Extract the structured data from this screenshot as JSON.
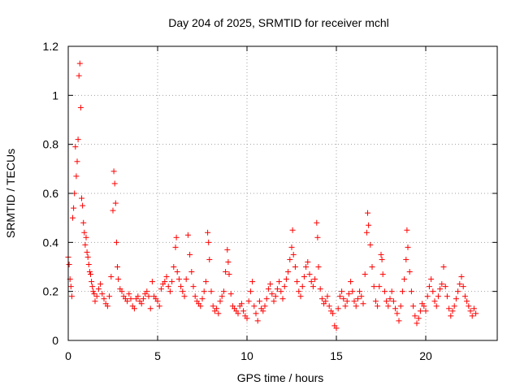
{
  "chart_data": {
    "type": "scatter",
    "title": "Day 204 of 2025, SRMTID for receiver mchl",
    "xlabel": "GPS time / hours",
    "ylabel": "SRMTID / TECUs",
    "xlim": [
      0,
      24
    ],
    "ylim": [
      0,
      1.2
    ],
    "xticks": [
      0,
      5,
      10,
      15,
      20
    ],
    "yticks": [
      0,
      0.2,
      0.4,
      0.6,
      0.8,
      1,
      1.2
    ],
    "xtick_labels": [
      "0",
      "5",
      "10",
      "15",
      "20"
    ],
    "ytick_labels": [
      "0",
      "0.2",
      "0.4",
      "0.6",
      "0.8",
      "1",
      "1.2"
    ],
    "grid": true,
    "marker": "+",
    "marker_color": "#ff0000",
    "grid_color": "#a0a0a0",
    "series": [
      {
        "name": "SRMTID",
        "points": [
          [
            0.0,
            0.34
          ],
          [
            0.05,
            0.31
          ],
          [
            0.1,
            0.25
          ],
          [
            0.15,
            0.22
          ],
          [
            0.2,
            0.18
          ],
          [
            0.25,
            0.5
          ],
          [
            0.3,
            0.54
          ],
          [
            0.35,
            0.6
          ],
          [
            0.4,
            0.79
          ],
          [
            0.45,
            0.67
          ],
          [
            0.5,
            0.73
          ],
          [
            0.55,
            0.82
          ],
          [
            0.6,
            1.08
          ],
          [
            0.65,
            1.13
          ],
          [
            0.7,
            0.95
          ],
          [
            0.75,
            0.58
          ],
          [
            0.8,
            0.55
          ],
          [
            0.85,
            0.48
          ],
          [
            0.9,
            0.44
          ],
          [
            0.95,
            0.39
          ],
          [
            1.0,
            0.42
          ],
          [
            1.05,
            0.36
          ],
          [
            1.1,
            0.34
          ],
          [
            1.15,
            0.31
          ],
          [
            1.2,
            0.28
          ],
          [
            1.25,
            0.27
          ],
          [
            1.3,
            0.24
          ],
          [
            1.35,
            0.22
          ],
          [
            1.4,
            0.2
          ],
          [
            1.45,
            0.19
          ],
          [
            1.5,
            0.16
          ],
          [
            1.6,
            0.18
          ],
          [
            1.7,
            0.21
          ],
          [
            1.8,
            0.23
          ],
          [
            1.9,
            0.19
          ],
          [
            2.0,
            0.17
          ],
          [
            2.1,
            0.15
          ],
          [
            2.2,
            0.14
          ],
          [
            2.3,
            0.18
          ],
          [
            2.4,
            0.26
          ],
          [
            2.5,
            0.53
          ],
          [
            2.55,
            0.69
          ],
          [
            2.6,
            0.64
          ],
          [
            2.65,
            0.56
          ],
          [
            2.7,
            0.4
          ],
          [
            2.75,
            0.3
          ],
          [
            2.8,
            0.25
          ],
          [
            2.9,
            0.21
          ],
          [
            3.0,
            0.2
          ],
          [
            3.1,
            0.18
          ],
          [
            3.2,
            0.17
          ],
          [
            3.3,
            0.16
          ],
          [
            3.4,
            0.19
          ],
          [
            3.5,
            0.17
          ],
          [
            3.6,
            0.14
          ],
          [
            3.7,
            0.13
          ],
          [
            3.8,
            0.17
          ],
          [
            3.9,
            0.18
          ],
          [
            4.0,
            0.16
          ],
          [
            4.1,
            0.15
          ],
          [
            4.2,
            0.17
          ],
          [
            4.3,
            0.19
          ],
          [
            4.4,
            0.2
          ],
          [
            4.5,
            0.18
          ],
          [
            4.6,
            0.13
          ],
          [
            4.7,
            0.24
          ],
          [
            4.8,
            0.18
          ],
          [
            4.9,
            0.17
          ],
          [
            5.0,
            0.16
          ],
          [
            5.1,
            0.14
          ],
          [
            5.2,
            0.21
          ],
          [
            5.3,
            0.23
          ],
          [
            5.4,
            0.24
          ],
          [
            5.5,
            0.26
          ],
          [
            5.6,
            0.22
          ],
          [
            5.7,
            0.2
          ],
          [
            5.8,
            0.24
          ],
          [
            5.9,
            0.3
          ],
          [
            6.0,
            0.38
          ],
          [
            6.05,
            0.42
          ],
          [
            6.1,
            0.28
          ],
          [
            6.2,
            0.25
          ],
          [
            6.3,
            0.22
          ],
          [
            6.4,
            0.2
          ],
          [
            6.5,
            0.18
          ],
          [
            6.6,
            0.25
          ],
          [
            6.7,
            0.43
          ],
          [
            6.8,
            0.35
          ],
          [
            6.9,
            0.28
          ],
          [
            7.0,
            0.22
          ],
          [
            7.1,
            0.18
          ],
          [
            7.2,
            0.16
          ],
          [
            7.3,
            0.15
          ],
          [
            7.4,
            0.14
          ],
          [
            7.5,
            0.17
          ],
          [
            7.6,
            0.2
          ],
          [
            7.7,
            0.24
          ],
          [
            7.8,
            0.44
          ],
          [
            7.85,
            0.4
          ],
          [
            7.9,
            0.33
          ],
          [
            8.0,
            0.2
          ],
          [
            8.1,
            0.14
          ],
          [
            8.2,
            0.12
          ],
          [
            8.3,
            0.13
          ],
          [
            8.4,
            0.11
          ],
          [
            8.5,
            0.16
          ],
          [
            8.6,
            0.18
          ],
          [
            8.7,
            0.2
          ],
          [
            8.8,
            0.28
          ],
          [
            8.9,
            0.37
          ],
          [
            8.95,
            0.32
          ],
          [
            9.0,
            0.27
          ],
          [
            9.1,
            0.19
          ],
          [
            9.2,
            0.14
          ],
          [
            9.3,
            0.13
          ],
          [
            9.4,
            0.12
          ],
          [
            9.5,
            0.11
          ],
          [
            9.6,
            0.14
          ],
          [
            9.7,
            0.15
          ],
          [
            9.8,
            0.12
          ],
          [
            9.9,
            0.1
          ],
          [
            10.0,
            0.09
          ],
          [
            10.1,
            0.16
          ],
          [
            10.2,
            0.2
          ],
          [
            10.3,
            0.24
          ],
          [
            10.4,
            0.14
          ],
          [
            10.5,
            0.11
          ],
          [
            10.6,
            0.08
          ],
          [
            10.7,
            0.16
          ],
          [
            10.8,
            0.13
          ],
          [
            10.9,
            0.12
          ],
          [
            11.0,
            0.14
          ],
          [
            11.1,
            0.17
          ],
          [
            11.2,
            0.21
          ],
          [
            11.3,
            0.23
          ],
          [
            11.4,
            0.19
          ],
          [
            11.5,
            0.16
          ],
          [
            11.6,
            0.18
          ],
          [
            11.7,
            0.21
          ],
          [
            11.8,
            0.24
          ],
          [
            11.9,
            0.2
          ],
          [
            12.0,
            0.17
          ],
          [
            12.1,
            0.22
          ],
          [
            12.2,
            0.25
          ],
          [
            12.3,
            0.28
          ],
          [
            12.4,
            0.33
          ],
          [
            12.5,
            0.38
          ],
          [
            12.55,
            0.45
          ],
          [
            12.6,
            0.35
          ],
          [
            12.7,
            0.3
          ],
          [
            12.8,
            0.24
          ],
          [
            12.9,
            0.2
          ],
          [
            13.0,
            0.18
          ],
          [
            13.1,
            0.22
          ],
          [
            13.2,
            0.26
          ],
          [
            13.3,
            0.3
          ],
          [
            13.4,
            0.32
          ],
          [
            13.5,
            0.27
          ],
          [
            13.6,
            0.24
          ],
          [
            13.7,
            0.22
          ],
          [
            13.8,
            0.25
          ],
          [
            13.9,
            0.48
          ],
          [
            13.95,
            0.42
          ],
          [
            14.0,
            0.3
          ],
          [
            14.1,
            0.21
          ],
          [
            14.2,
            0.17
          ],
          [
            14.3,
            0.15
          ],
          [
            14.4,
            0.16
          ],
          [
            14.5,
            0.18
          ],
          [
            14.6,
            0.14
          ],
          [
            14.7,
            0.12
          ],
          [
            14.8,
            0.11
          ],
          [
            14.9,
            0.06
          ],
          [
            15.0,
            0.05
          ],
          [
            15.1,
            0.13
          ],
          [
            15.2,
            0.18
          ],
          [
            15.3,
            0.2
          ],
          [
            15.4,
            0.17
          ],
          [
            15.5,
            0.14
          ],
          [
            15.6,
            0.16
          ],
          [
            15.7,
            0.19
          ],
          [
            15.8,
            0.24
          ],
          [
            15.9,
            0.2
          ],
          [
            16.0,
            0.16
          ],
          [
            16.1,
            0.14
          ],
          [
            16.2,
            0.17
          ],
          [
            16.3,
            0.2
          ],
          [
            16.4,
            0.18
          ],
          [
            16.5,
            0.15
          ],
          [
            16.6,
            0.27
          ],
          [
            16.7,
            0.44
          ],
          [
            16.75,
            0.52
          ],
          [
            16.8,
            0.47
          ],
          [
            16.9,
            0.39
          ],
          [
            17.0,
            0.3
          ],
          [
            17.1,
            0.22
          ],
          [
            17.2,
            0.16
          ],
          [
            17.3,
            0.14
          ],
          [
            17.4,
            0.22
          ],
          [
            17.5,
            0.35
          ],
          [
            17.55,
            0.33
          ],
          [
            17.6,
            0.27
          ],
          [
            17.7,
            0.2
          ],
          [
            17.8,
            0.16
          ],
          [
            17.9,
            0.14
          ],
          [
            18.0,
            0.17
          ],
          [
            18.1,
            0.2
          ],
          [
            18.2,
            0.16
          ],
          [
            18.3,
            0.13
          ],
          [
            18.4,
            0.11
          ],
          [
            18.5,
            0.08
          ],
          [
            18.6,
            0.14
          ],
          [
            18.7,
            0.2
          ],
          [
            18.8,
            0.25
          ],
          [
            18.9,
            0.33
          ],
          [
            18.95,
            0.45
          ],
          [
            19.0,
            0.38
          ],
          [
            19.1,
            0.28
          ],
          [
            19.2,
            0.2
          ],
          [
            19.3,
            0.14
          ],
          [
            19.4,
            0.1
          ],
          [
            19.5,
            0.07
          ],
          [
            19.6,
            0.09
          ],
          [
            19.7,
            0.12
          ],
          [
            19.8,
            0.15
          ],
          [
            19.9,
            0.14
          ],
          [
            20.0,
            0.12
          ],
          [
            20.1,
            0.18
          ],
          [
            20.2,
            0.22
          ],
          [
            20.3,
            0.25
          ],
          [
            20.4,
            0.2
          ],
          [
            20.5,
            0.16
          ],
          [
            20.6,
            0.14
          ],
          [
            20.7,
            0.18
          ],
          [
            20.8,
            0.21
          ],
          [
            20.9,
            0.23
          ],
          [
            21.0,
            0.3
          ],
          [
            21.1,
            0.22
          ],
          [
            21.2,
            0.18
          ],
          [
            21.3,
            0.13
          ],
          [
            21.4,
            0.1
          ],
          [
            21.5,
            0.12
          ],
          [
            21.6,
            0.14
          ],
          [
            21.7,
            0.17
          ],
          [
            21.8,
            0.2
          ],
          [
            21.9,
            0.23
          ],
          [
            22.0,
            0.26
          ],
          [
            22.1,
            0.22
          ],
          [
            22.2,
            0.18
          ],
          [
            22.3,
            0.16
          ],
          [
            22.4,
            0.14
          ],
          [
            22.5,
            0.12
          ],
          [
            22.6,
            0.1
          ],
          [
            22.7,
            0.13
          ],
          [
            22.8,
            0.11
          ]
        ]
      }
    ]
  }
}
